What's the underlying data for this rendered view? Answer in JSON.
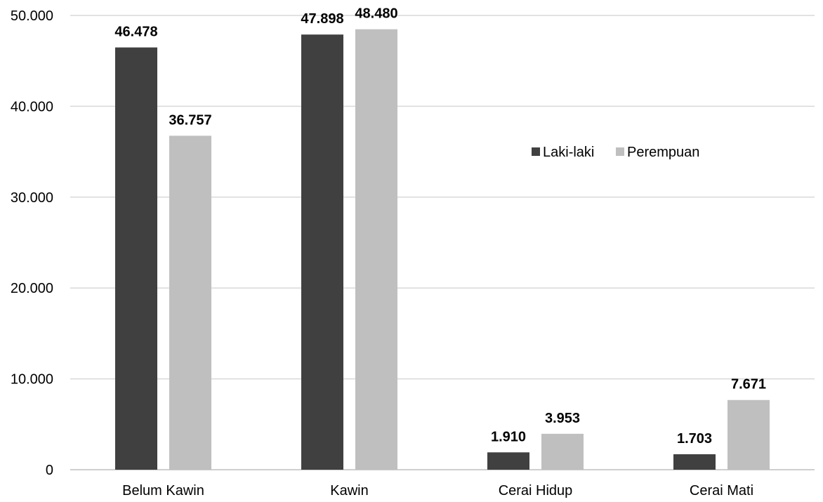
{
  "chart_data": {
    "type": "bar",
    "categories": [
      "Belum Kawin",
      "Kawin",
      "Cerai Hidup",
      "Cerai Mati"
    ],
    "series": [
      {
        "name": "Laki-laki",
        "color": "#404040",
        "values": [
          46478,
          47898,
          1910,
          1703
        ],
        "value_labels": [
          "46.478",
          "47.898",
          "1.910",
          "1.703"
        ]
      },
      {
        "name": "Perempuan",
        "color": "#bfbfbf",
        "values": [
          36757,
          48480,
          3953,
          7671
        ],
        "value_labels": [
          "36.757",
          "48.480",
          "3.953",
          "7.671"
        ]
      }
    ],
    "ylim": [
      0,
      50000
    ],
    "yticks": [
      0,
      10000,
      20000,
      30000,
      40000,
      50000
    ],
    "ytick_labels": [
      "0",
      "10.000",
      "20.000",
      "30.000",
      "40.000",
      "50.000"
    ],
    "grid": true,
    "legend_position": "right-upper",
    "title": "",
    "xlabel": "",
    "ylabel": ""
  }
}
